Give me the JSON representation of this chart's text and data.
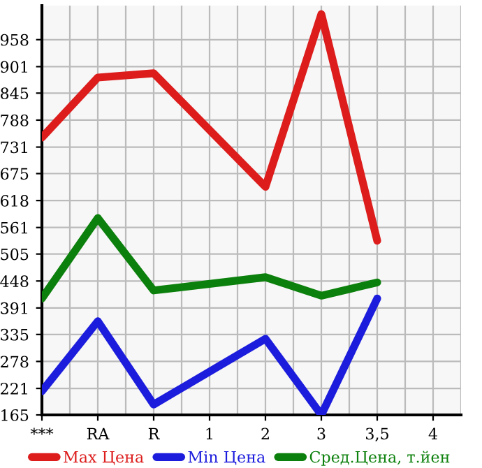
{
  "chart_data": {
    "type": "line",
    "categories": [
      "***",
      "RA",
      "R",
      "1",
      "2",
      "3",
      "3,5",
      "4"
    ],
    "series": [
      {
        "name": "Max Цена",
        "color": "#dd1c1c",
        "values": [
          751,
          878,
          887,
          null,
          647,
          1012,
          533,
          null
        ]
      },
      {
        "name": "Min Цена",
        "color": "#1c1cdd",
        "values": [
          215,
          363,
          187,
          null,
          326,
          165,
          411,
          null
        ]
      },
      {
        "name": "Сред.Цена, т.йен",
        "color": "#0c800c",
        "values": [
          411,
          581,
          428,
          null,
          456,
          417,
          445,
          null
        ]
      }
    ],
    "ylim": [
      165,
      1030
    ],
    "yticks": [
      165,
      221,
      278,
      335,
      391,
      448,
      505,
      561,
      618,
      675,
      731,
      788,
      845,
      901,
      958
    ],
    "grid": true,
    "legend": "bottom",
    "marker": "none",
    "line_style": "solid"
  }
}
